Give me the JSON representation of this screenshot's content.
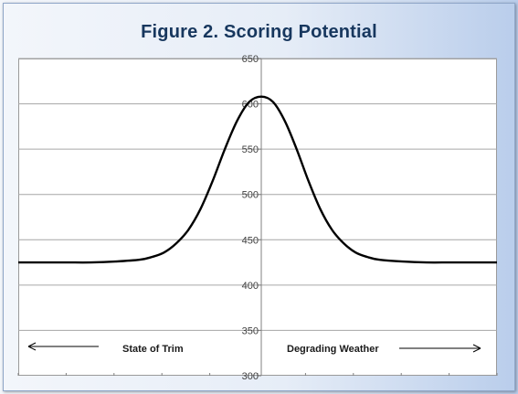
{
  "chart_data": {
    "type": "line",
    "title": "Figure 2. Scoring Potential",
    "xlabel": "",
    "ylabel": "",
    "ylim": [
      300,
      650
    ],
    "yticks": [
      300,
      350,
      400,
      450,
      500,
      550,
      600,
      650
    ],
    "grid": true,
    "legend": "none",
    "colors": {
      "line": "#000000",
      "grid": "#a6a6a6",
      "title": "#17375e"
    },
    "annotations": {
      "left": "State of Trim",
      "right": "Degrading Weather"
    },
    "series": [
      {
        "x": [
          -10,
          -9,
          -8,
          -7,
          -6,
          -5,
          -4.5,
          -4,
          -3.5,
          -3,
          -2.5,
          -2,
          -1.5,
          -1,
          -0.5,
          0,
          0.5,
          1,
          1.5,
          2,
          2.5,
          3,
          3.5,
          4,
          4.5,
          5,
          6,
          7,
          8,
          9,
          10
        ],
        "values": [
          425,
          425,
          425,
          425,
          426,
          428,
          431,
          436,
          446,
          461,
          484,
          515,
          550,
          581,
          602,
          608,
          602,
          581,
          550,
          515,
          484,
          461,
          446,
          436,
          431,
          428,
          426,
          425,
          425,
          425,
          425
        ]
      }
    ]
  }
}
